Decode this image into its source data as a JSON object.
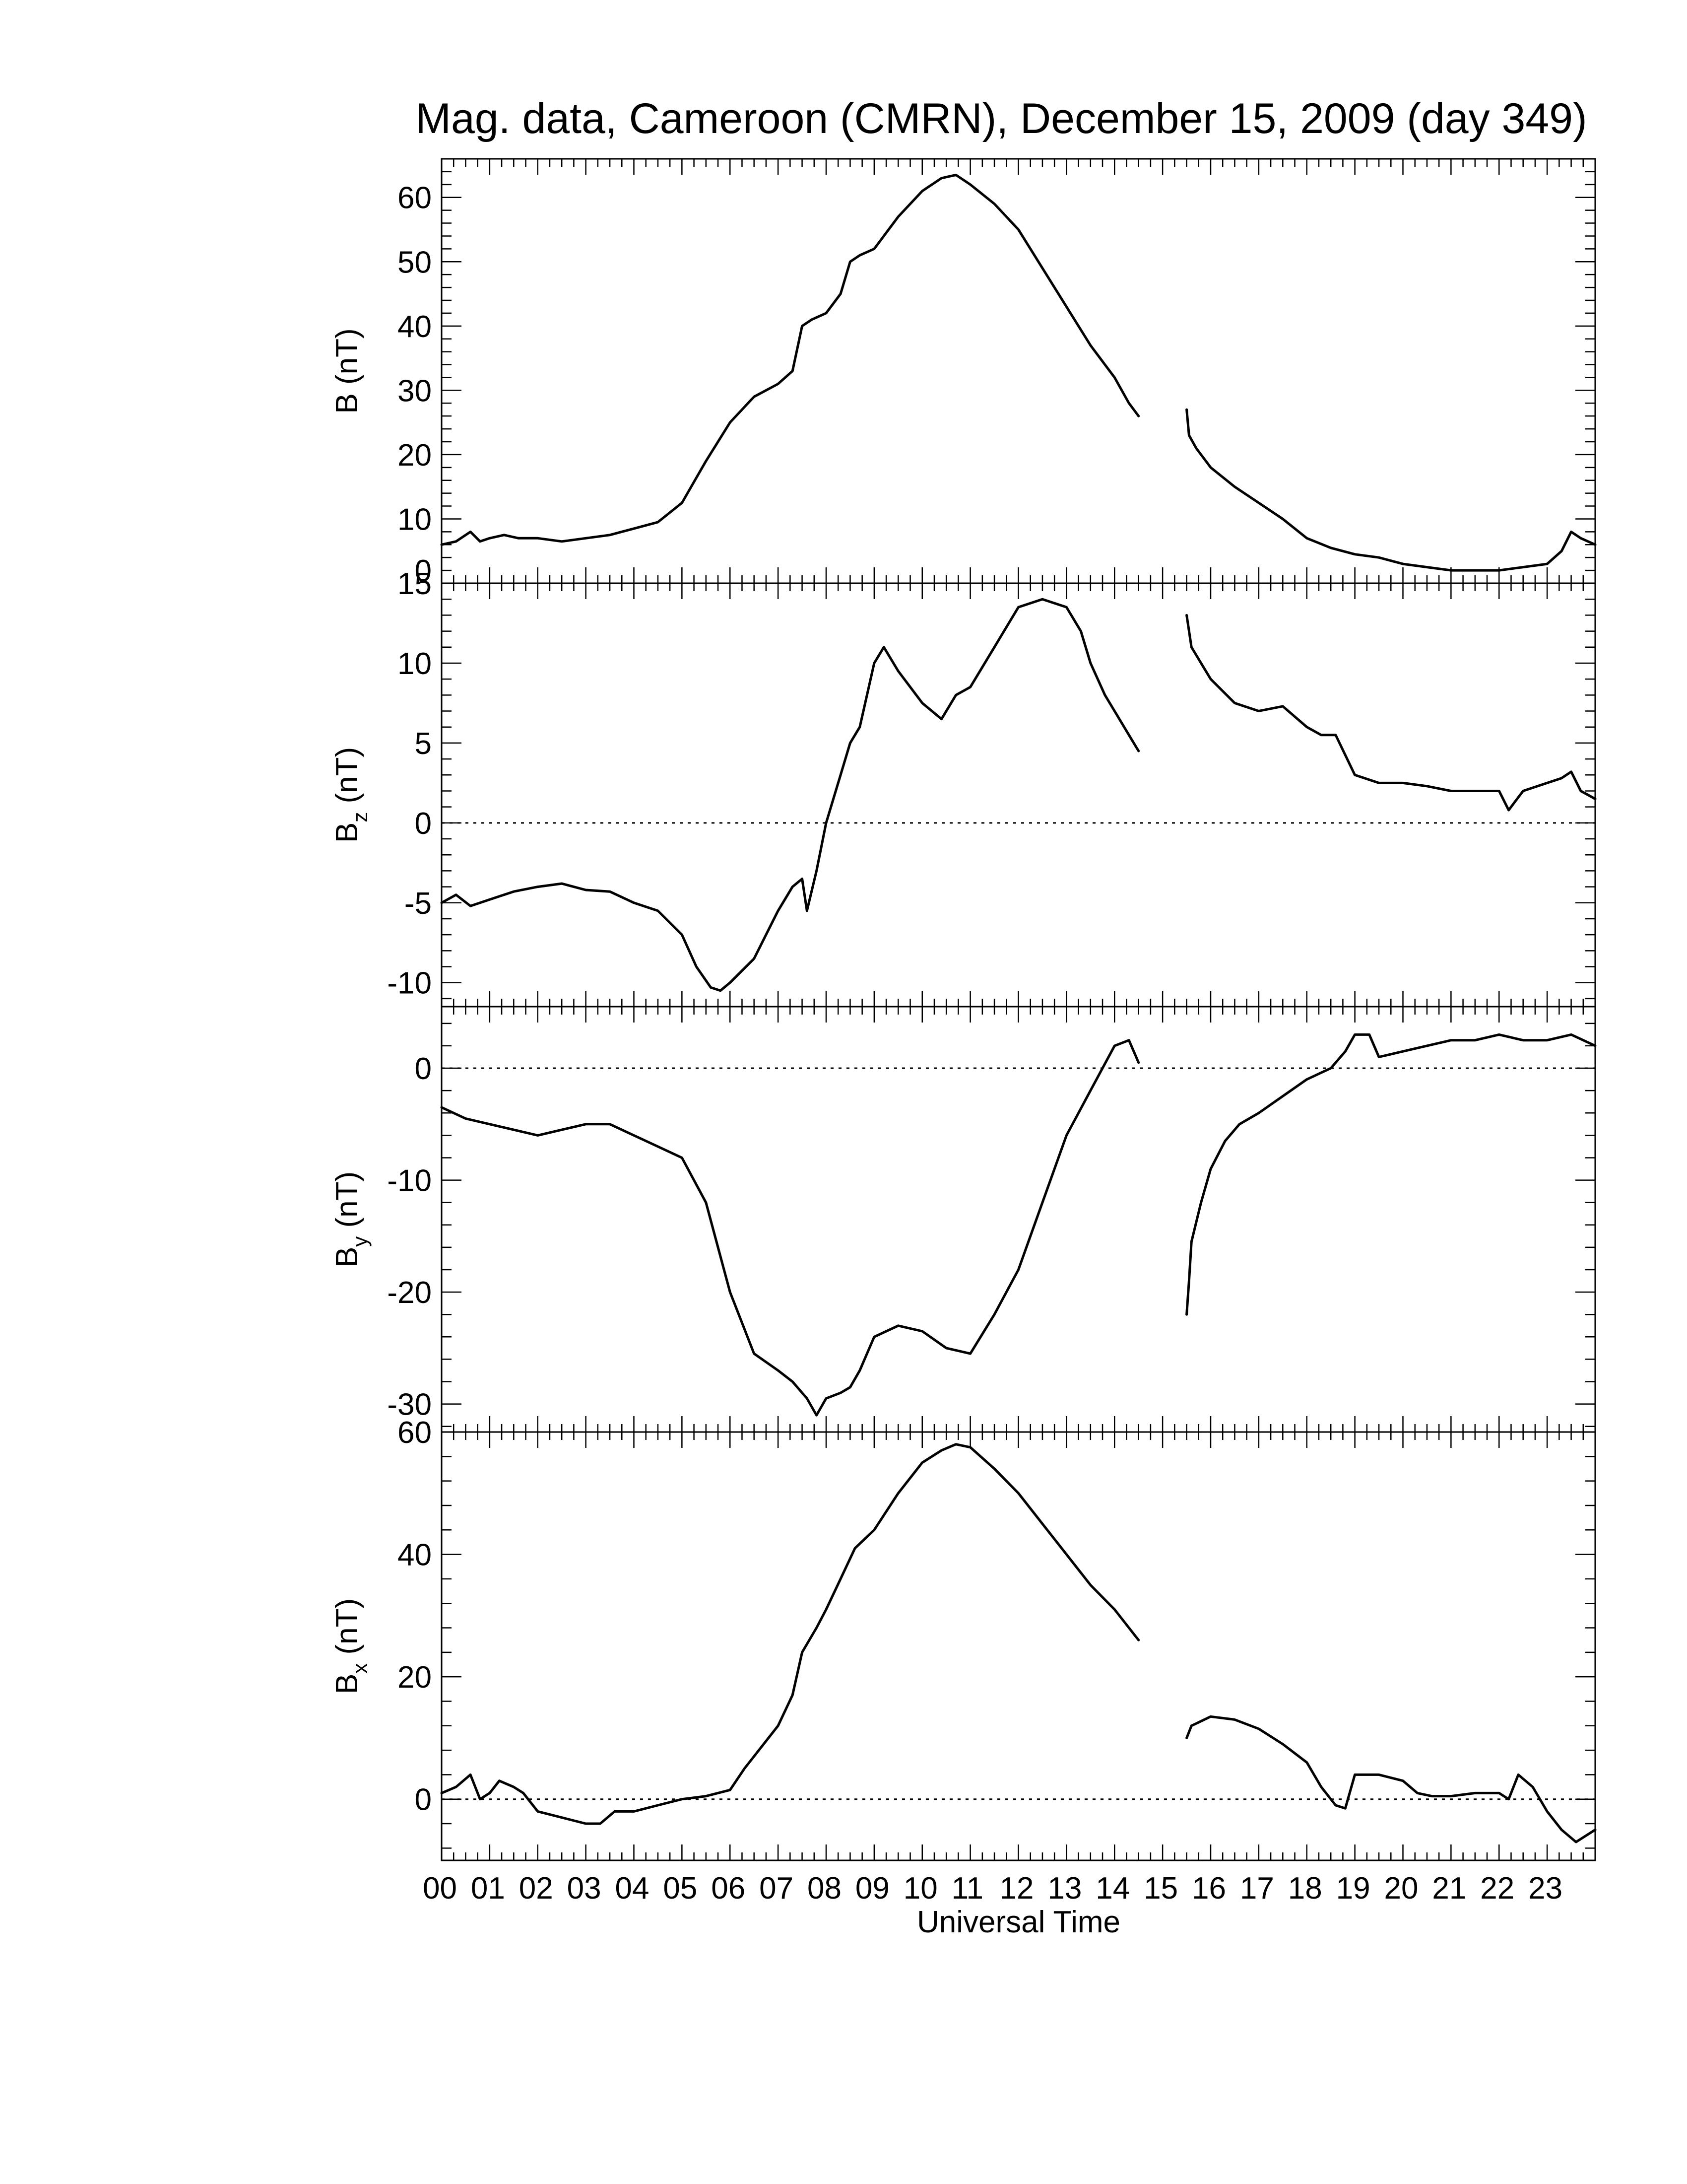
{
  "chart_data": {
    "type": "line",
    "title": "Mag. data, Cameroon (CMRN), December 15, 2009 (day 349)",
    "xlabel": "Universal Time",
    "x_range": [
      0,
      24
    ],
    "x_ticks": [
      "00",
      "01",
      "02",
      "03",
      "04",
      "05",
      "06",
      "07",
      "08",
      "09",
      "10",
      "11",
      "12",
      "13",
      "14",
      "15",
      "16",
      "17",
      "18",
      "19",
      "20",
      "21",
      "22",
      "23"
    ],
    "data_gap": [
      14.5,
      15.5
    ],
    "panels": [
      {
        "id": "B",
        "ylabel_main": "B",
        "ylabel_sub": "",
        "ylabel_unit": " (nT)",
        "ylim": [
          0,
          66
        ],
        "yticks": [
          "60",
          "50",
          "40",
          "30",
          "20",
          "10",
          "0"
        ],
        "ytick_values": [
          60,
          50,
          40,
          30,
          20,
          10,
          0
        ],
        "zero_line": false,
        "series": [
          {
            "x": [
              0,
              0.3,
              0.6,
              0.8,
              1.0,
              1.3,
              1.6,
              2.0,
              2.5,
              3.0,
              3.5,
              4.0,
              4.5,
              5.0,
              5.5,
              6.0,
              6.5,
              7.0,
              7.3,
              7.5,
              7.7,
              8.0,
              8.3,
              8.5,
              8.7,
              9.0,
              9.5,
              10.0,
              10.4,
              10.7,
              11.0,
              11.5,
              12.0,
              12.5,
              13.0,
              13.5,
              14.0,
              14.3,
              14.5
            ],
            "y": [
              6,
              6.5,
              8,
              6.5,
              7,
              7.5,
              7,
              7,
              6.5,
              7,
              7.5,
              8.5,
              9.5,
              12.5,
              19,
              25,
              29,
              31,
              33,
              40,
              41,
              42,
              45,
              50,
              51,
              52,
              57,
              61,
              63,
              63.5,
              62,
              59,
              55,
              49,
              43,
              37,
              32,
              28,
              26
            ]
          },
          {
            "x": [
              15.5,
              15.55,
              15.7,
              16.0,
              16.5,
              17.0,
              17.5,
              18.0,
              18.5,
              19.0,
              19.5,
              20.0,
              20.5,
              21.0,
              21.5,
              22.0,
              22.5,
              23.0,
              23.3,
              23.5,
              23.7,
              24.0
            ],
            "y": [
              27,
              23,
              21,
              18,
              15,
              12.5,
              10,
              7,
              5.5,
              4.5,
              4,
              3,
              2.5,
              2,
              2,
              2,
              2.5,
              3,
              5,
              8,
              7,
              6
            ]
          }
        ]
      },
      {
        "id": "Bz",
        "ylabel_main": "B",
        "ylabel_sub": "z",
        "ylabel_unit": " (nT)",
        "ylim": [
          -11.5,
          15
        ],
        "yticks": [
          "15",
          "10",
          "5",
          "0",
          "-5",
          "-10"
        ],
        "ytick_values": [
          15,
          10,
          5,
          0,
          -5,
          -10
        ],
        "zero_line": true,
        "series": [
          {
            "x": [
              0,
              0.3,
              0.6,
              1.0,
              1.5,
              2.0,
              2.5,
              3.0,
              3.5,
              4.0,
              4.5,
              5.0,
              5.3,
              5.6,
              5.8,
              6.0,
              6.5,
              7.0,
              7.3,
              7.5,
              7.6,
              7.8,
              8.0,
              8.3,
              8.5,
              8.7,
              9.0,
              9.2,
              9.5,
              10.0,
              10.4,
              10.7,
              11.0,
              11.5,
              12.0,
              12.5,
              13.0,
              13.3,
              13.5,
              13.8,
              14.0,
              14.3,
              14.5
            ],
            "y": [
              -5,
              -4.5,
              -5.2,
              -4.8,
              -4.3,
              -4,
              -3.8,
              -4.2,
              -4.3,
              -5,
              -5.5,
              -7,
              -9,
              -10.3,
              -10.5,
              -10,
              -8.5,
              -5.5,
              -4,
              -3.5,
              -5.5,
              -3,
              0,
              3,
              5,
              6,
              10,
              11,
              9.5,
              7.5,
              6.5,
              8,
              8.5,
              11,
              13.5,
              14,
              13.5,
              12,
              10,
              8,
              7,
              5.5,
              4.5
            ]
          },
          {
            "x": [
              15.5,
              15.6,
              15.8,
              16.0,
              16.5,
              17.0,
              17.5,
              18.0,
              18.3,
              18.6,
              19.0,
              19.5,
              20.0,
              20.5,
              21.0,
              21.5,
              22.0,
              22.2,
              22.5,
              23.0,
              23.3,
              23.5,
              23.7,
              24.0
            ],
            "y": [
              13,
              11,
              10,
              9,
              7.5,
              7,
              7.3,
              6,
              5.5,
              5.5,
              3,
              2.5,
              2.5,
              2.3,
              2,
              2,
              2,
              0.8,
              2,
              2.5,
              2.8,
              3.2,
              2,
              1.5
            ]
          }
        ]
      },
      {
        "id": "By",
        "ylabel_main": "B",
        "ylabel_sub": "y",
        "ylabel_unit": " (nT)",
        "ylim": [
          -32.5,
          5.5
        ],
        "yticks": [
          "0",
          "-10",
          "-20",
          "-30"
        ],
        "ytick_values": [
          0,
          -10,
          -20,
          -30
        ],
        "zero_line": true,
        "series": [
          {
            "x": [
              0,
              0.5,
              1.0,
              1.5,
              2.0,
              2.5,
              3.0,
              3.5,
              4.0,
              4.5,
              5.0,
              5.5,
              6.0,
              6.5,
              7.0,
              7.3,
              7.6,
              7.8,
              8.0,
              8.3,
              8.5,
              8.7,
              9.0,
              9.5,
              10.0,
              10.5,
              11.0,
              11.5,
              12.0,
              12.5,
              13.0,
              13.5,
              14.0,
              14.3,
              14.5
            ],
            "y": [
              -3.5,
              -4.5,
              -5,
              -5.5,
              -6,
              -5.5,
              -5,
              -5,
              -6,
              -7,
              -8,
              -12,
              -20,
              -25.5,
              -27,
              -28,
              -29.5,
              -31,
              -29.5,
              -29,
              -28.5,
              -27,
              -24,
              -23,
              -23.5,
              -25,
              -25.5,
              -22,
              -18,
              -12,
              -6,
              -2,
              2,
              2.5,
              0.5
            ]
          },
          {
            "x": [
              15.5,
              15.55,
              15.6,
              15.8,
              16.0,
              16.3,
              16.6,
              17.0,
              17.5,
              18.0,
              18.5,
              18.8,
              19.0,
              19.3,
              19.5,
              20.0,
              20.5,
              21.0,
              21.5,
              22.0,
              22.5,
              23.0,
              23.5,
              24.0
            ],
            "y": [
              -22,
              -19,
              -15.5,
              -12,
              -9,
              -6.5,
              -5,
              -4,
              -2.5,
              -1,
              0,
              1.5,
              3,
              3,
              1,
              1.5,
              2,
              2.5,
              2.5,
              3,
              2.5,
              2.5,
              3,
              2
            ]
          }
        ]
      },
      {
        "id": "Bx",
        "ylabel_main": "B",
        "ylabel_sub": "x",
        "ylabel_unit": " (nT)",
        "ylim": [
          -10,
          60
        ],
        "yticks": [
          "60",
          "40",
          "20",
          "0"
        ],
        "ytick_values": [
          60,
          40,
          20,
          0
        ],
        "zero_line": true,
        "series": [
          {
            "x": [
              0,
              0.3,
              0.6,
              0.8,
              1.0,
              1.2,
              1.5,
              1.7,
              2.0,
              2.5,
              3.0,
              3.3,
              3.6,
              4.0,
              4.5,
              5.0,
              5.5,
              6.0,
              6.3,
              6.6,
              7.0,
              7.3,
              7.5,
              7.8,
              8.0,
              8.3,
              8.6,
              9.0,
              9.5,
              10.0,
              10.4,
              10.7,
              11.0,
              11.5,
              12.0,
              12.5,
              13.0,
              13.5,
              14.0,
              14.3,
              14.5
            ],
            "y": [
              1,
              2,
              4,
              0,
              1,
              3,
              2,
              1,
              -2,
              -3,
              -4,
              -4,
              -2,
              -2,
              -1,
              0,
              0.5,
              1.5,
              5,
              8,
              12,
              17,
              24,
              28,
              31,
              36,
              41,
              44,
              50,
              55,
              57,
              58,
              57.5,
              54,
              50,
              45,
              40,
              35,
              31,
              28,
              26
            ]
          },
          {
            "x": [
              15.5,
              15.6,
              16.0,
              16.5,
              17.0,
              17.5,
              18.0,
              18.3,
              18.6,
              18.8,
              19.0,
              19.5,
              20.0,
              20.3,
              20.6,
              21.0,
              21.5,
              22.0,
              22.2,
              22.4,
              22.7,
              23.0,
              23.3,
              23.6,
              24.0
            ],
            "y": [
              10,
              12,
              13.5,
              13,
              11.5,
              9,
              6,
              2,
              -1,
              -1.5,
              4,
              4,
              3,
              1,
              0.5,
              0.5,
              1,
              1,
              0,
              4,
              2,
              -2,
              -5,
              -7,
              -5
            ]
          }
        ]
      }
    ]
  }
}
